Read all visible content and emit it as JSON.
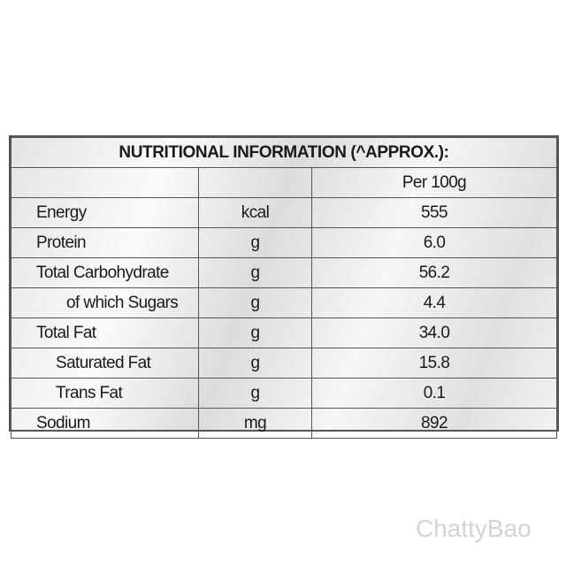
{
  "table": {
    "title": "NUTRITIONAL INFORMATION (^APPROX.):",
    "header": [
      "",
      "",
      "Per 100g"
    ],
    "rows": [
      [
        "Energy",
        "kcal",
        "555"
      ],
      [
        "Protein",
        "g",
        "6.0"
      ],
      [
        "Total Carbohydrate",
        "g",
        "56.2"
      ],
      [
        "of which Sugars",
        "g",
        "4.4"
      ],
      [
        "Total Fat",
        "g",
        "34.0"
      ],
      [
        "Saturated Fat",
        "g",
        "15.8"
      ],
      [
        "Trans Fat",
        "g",
        "0.1"
      ],
      [
        "Sodium",
        "mg",
        "892"
      ]
    ]
  },
  "watermark": "ChattyBao"
}
